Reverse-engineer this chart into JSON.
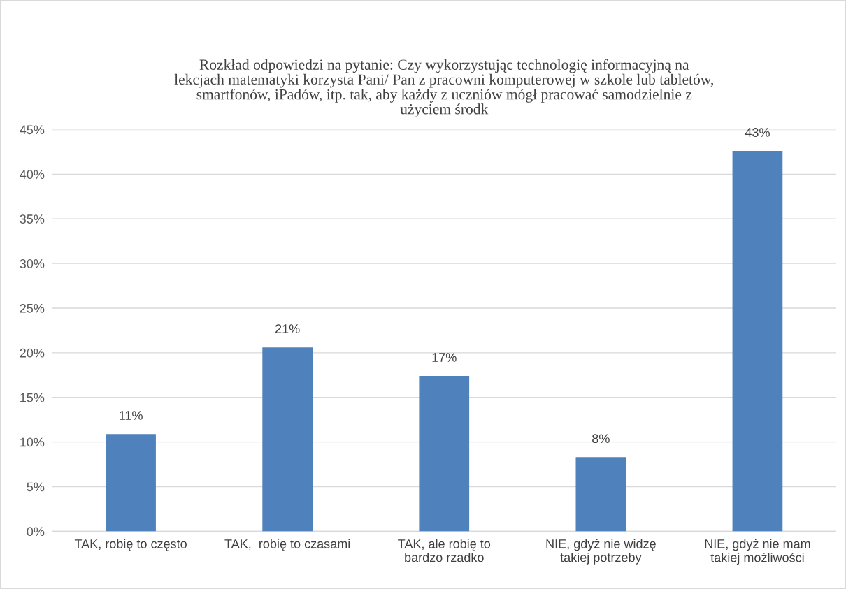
{
  "chart_data": {
    "type": "bar",
    "title": "Rozkład odpowiedzi na pytanie: Czy wykorzystując technologię informacyjną na\nlekcjach matematyki korzysta Pani/ Pan z pracowni komputerowej w szkole lub tabletów,\nsmartfonów, iPadów, itp. tak, aby każdy z uczniów mógł pracować samodzielnie z\nużyciem środk",
    "categories": [
      "TAK, robię to często",
      "TAK,  robię to czasami",
      "TAK, ale robię to\nbardzo rzadko",
      "NIE, gdyż nie widzę\ntakiej potrzeby",
      "NIE, gdyż nie mam\ntakiej możliwości"
    ],
    "values": [
      10.9,
      20.6,
      17.4,
      8.3,
      42.6
    ],
    "value_labels": [
      "11%",
      "21%",
      "17%",
      "8%",
      "43%"
    ],
    "color": "#4f81bd",
    "ylim": [
      0,
      45
    ],
    "yticks": [
      {
        "value": 0,
        "label": "0%"
      },
      {
        "value": 5,
        "label": "5%"
      },
      {
        "value": 10,
        "label": "10%"
      },
      {
        "value": 15,
        "label": "15%"
      },
      {
        "value": 20,
        "label": "20%"
      },
      {
        "value": 25,
        "label": "25%"
      },
      {
        "value": 30,
        "label": "30%"
      },
      {
        "value": 35,
        "label": "35%"
      },
      {
        "value": 40,
        "label": "40%"
      },
      {
        "value": 45,
        "label": "45%"
      }
    ],
    "grid": "y",
    "legend": false
  }
}
